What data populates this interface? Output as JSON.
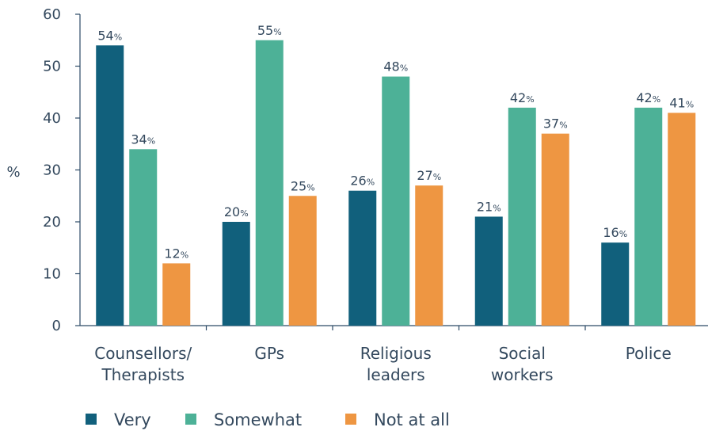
{
  "chart_data": {
    "type": "bar",
    "ylabel": "%",
    "ylim": [
      0,
      60
    ],
    "yticks": [
      0,
      10,
      20,
      30,
      40,
      50,
      60
    ],
    "categories": [
      [
        "Counsellors/",
        "Therapists"
      ],
      [
        "GPs"
      ],
      [
        "Religious",
        "leaders"
      ],
      [
        "Social",
        "workers"
      ],
      [
        "Police"
      ]
    ],
    "series": [
      {
        "name": "Very",
        "color": "#11607c",
        "values": [
          54,
          20,
          26,
          21,
          16
        ]
      },
      {
        "name": "Somewhat",
        "color": "#4db197",
        "values": [
          34,
          55,
          48,
          42,
          42
        ]
      },
      {
        "name": "Not at all",
        "color": "#ee9642",
        "values": [
          12,
          25,
          27,
          37,
          41
        ]
      }
    ],
    "value_suffix": "%",
    "grid": false,
    "legend_position": "bottom"
  }
}
